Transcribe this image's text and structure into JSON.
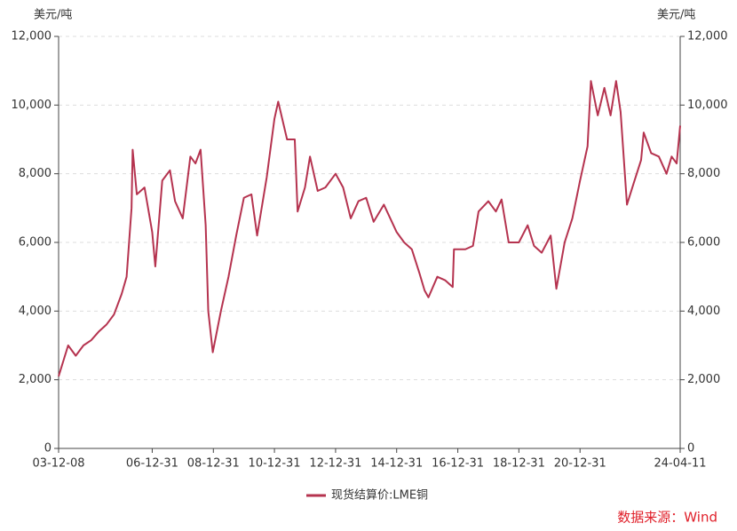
{
  "chart_data": {
    "type": "line",
    "ylabel": "美元/吨",
    "y2label": "美元/吨",
    "source": "数据来源：Wind",
    "xlim": [
      "03-12-08",
      "24-04-11"
    ],
    "xticks": [
      "03-12-08",
      "06-12-31",
      "08-12-31",
      "10-12-31",
      "12-12-31",
      "14-12-31",
      "16-12-31",
      "18-12-31",
      "20-12-31",
      "24-04-11"
    ],
    "ylim": [
      0,
      12000
    ],
    "yticks": [
      0,
      {
        "value": 2000,
        "label": "2,000"
      },
      {
        "value": 4000,
        "label": "4,000"
      },
      {
        "value": 6000,
        "label": "6,000"
      },
      {
        "value": 8000,
        "label": "8,000"
      },
      {
        "value": 10000,
        "label": "10,000"
      },
      {
        "value": 12000,
        "label": "12,000"
      }
    ],
    "y2lim": [
      0,
      12000
    ],
    "y2ticks": [
      0,
      {
        "value": 2000,
        "label": "2,000"
      },
      {
        "value": 4000,
        "label": "4,000"
      },
      {
        "value": 6000,
        "label": "6,000"
      },
      {
        "value": 8000,
        "label": "8,000"
      },
      {
        "value": 10000,
        "label": "10,000"
      },
      {
        "value": 12000,
        "label": "12,000"
      }
    ],
    "grid": true,
    "legend": "bottom",
    "series": [
      {
        "name": "现货结算价:LME铜",
        "color": "#b5334f",
        "x": [
          "03-12-08",
          "04-03-31",
          "04-06-30",
          "04-09-30",
          "04-12-31",
          "05-03-31",
          "05-06-30",
          "05-09-30",
          "05-12-31",
          "06-02-28",
          "06-04-28",
          "06-05-11",
          "06-06-30",
          "06-09-30",
          "06-12-31",
          "07-02-06",
          "07-04-30",
          "07-07-31",
          "07-09-30",
          "07-12-31",
          "08-03-31",
          "08-05-31",
          "08-07-31",
          "08-09-30",
          "08-10-31",
          "08-12-24",
          "09-03-31",
          "09-06-30",
          "09-09-30",
          "09-12-31",
          "10-03-31",
          "10-06-07",
          "10-09-30",
          "10-12-31",
          "11-02-14",
          "11-05-31",
          "11-08-31",
          "11-10-04",
          "11-12-31",
          "12-02-29",
          "12-05-31",
          "12-08-31",
          "12-12-31",
          "13-03-31",
          "13-06-30",
          "13-09-30",
          "13-12-31",
          "14-03-31",
          "14-07-31",
          "14-12-31",
          "15-03-31",
          "15-06-30",
          "15-09-30",
          "15-11-30",
          "16-01-15",
          "16-04-30",
          "16-07-31",
          "16-10-31",
          "16-11-15",
          "17-03-31",
          "17-06-30",
          "17-09-05",
          "17-12-31",
          "18-03-31",
          "18-06-07",
          "18-08-31",
          "18-12-31",
          "19-04-15",
          "19-06-30",
          "19-09-30",
          "20-01-15",
          "20-03-23",
          "20-06-30",
          "20-09-30",
          "20-12-31",
          "21-03-31",
          "21-05-10",
          "21-07-31",
          "21-10-18",
          "21-12-31",
          "22-03-07",
          "22-04-30",
          "22-07-15",
          "22-09-30",
          "22-12-31",
          "23-01-31",
          "23-04-30",
          "23-07-31",
          "23-10-31",
          "23-12-31",
          "24-02-29",
          "24-04-11"
        ],
        "values": [
          2100,
          3000,
          2700,
          3000,
          3150,
          3400,
          3600,
          3900,
          4500,
          5000,
          7000,
          8700,
          7400,
          7600,
          6300,
          5300,
          7800,
          8100,
          7200,
          6700,
          8500,
          8300,
          8700,
          6500,
          4000,
          2800,
          4000,
          5000,
          6200,
          7300,
          7400,
          6200,
          7900,
          9600,
          10100,
          9000,
          9000,
          6900,
          7600,
          8500,
          7500,
          7600,
          8000,
          7600,
          6700,
          7200,
          7300,
          6600,
          7100,
          6300,
          6000,
          5800,
          5100,
          4600,
          4400,
          5000,
          4900,
          4700,
          5800,
          5800,
          5900,
          6900,
          7200,
          6900,
          7250,
          6000,
          6000,
          6500,
          5900,
          5700,
          6200,
          4650,
          6000,
          6700,
          7800,
          8800,
          10700,
          9700,
          10500,
          9700,
          10700,
          9800,
          7100,
          7700,
          8400,
          9200,
          8600,
          8500,
          8000,
          8500,
          8300,
          9400
        ]
      }
    ]
  }
}
